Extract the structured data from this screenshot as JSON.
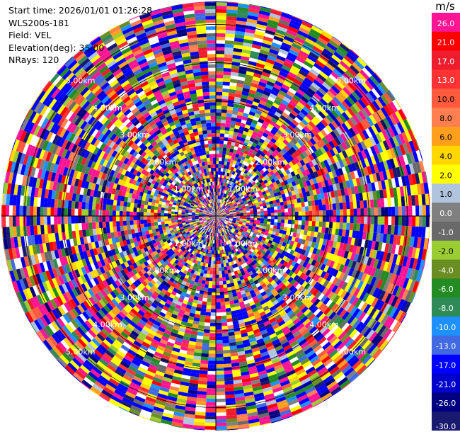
{
  "info": {
    "start_time": "Start time: 2026/01/01 01:26:28",
    "site": "WLS200s-181",
    "field": "Field: VEL",
    "elevation": "Elevation(deg): 35.00",
    "nrays": "NRays: 120"
  },
  "chart_data": {
    "type": "heatmap",
    "projection": "polar-ppi",
    "field": "VEL",
    "elevation_deg": 35.0,
    "nrays": 120,
    "range_rings_km": [
      1.0,
      2.0,
      3.0,
      4.0,
      5.0
    ],
    "range_ring_labels": [
      "1.00km",
      "2.00km",
      "3.00km",
      "4.00km",
      "5.00km"
    ],
    "max_range_km": 5.6,
    "colorbar": {
      "unit": "m/s",
      "ticks": [
        "26.0",
        "21.0",
        "17.0",
        "13.0",
        "10.0",
        "8.0",
        "6.0",
        "4.0",
        "2.0",
        "1.0",
        "0.0",
        "-1.0",
        "-2.0",
        "-4.0",
        "-6.0",
        "-8.0",
        "-10.0",
        "-13.0",
        "-17.0",
        "-21.0",
        "-26.0",
        "-30.0"
      ],
      "colors": [
        "#ff1493",
        "#ff0000",
        "#ee1c2c",
        "#ff3333",
        "#ff5a3c",
        "#ff7f50",
        "#ff9f1c",
        "#ffd700",
        "#ffff00",
        "#b0c4de",
        "#808080",
        "#696969",
        "#9acd32",
        "#6b8e23",
        "#228b22",
        "#2e8b57",
        "#1e90ff",
        "#4169e1",
        "#0000ff",
        "#0000cd",
        "#000080",
        "#191970"
      ]
    }
  }
}
